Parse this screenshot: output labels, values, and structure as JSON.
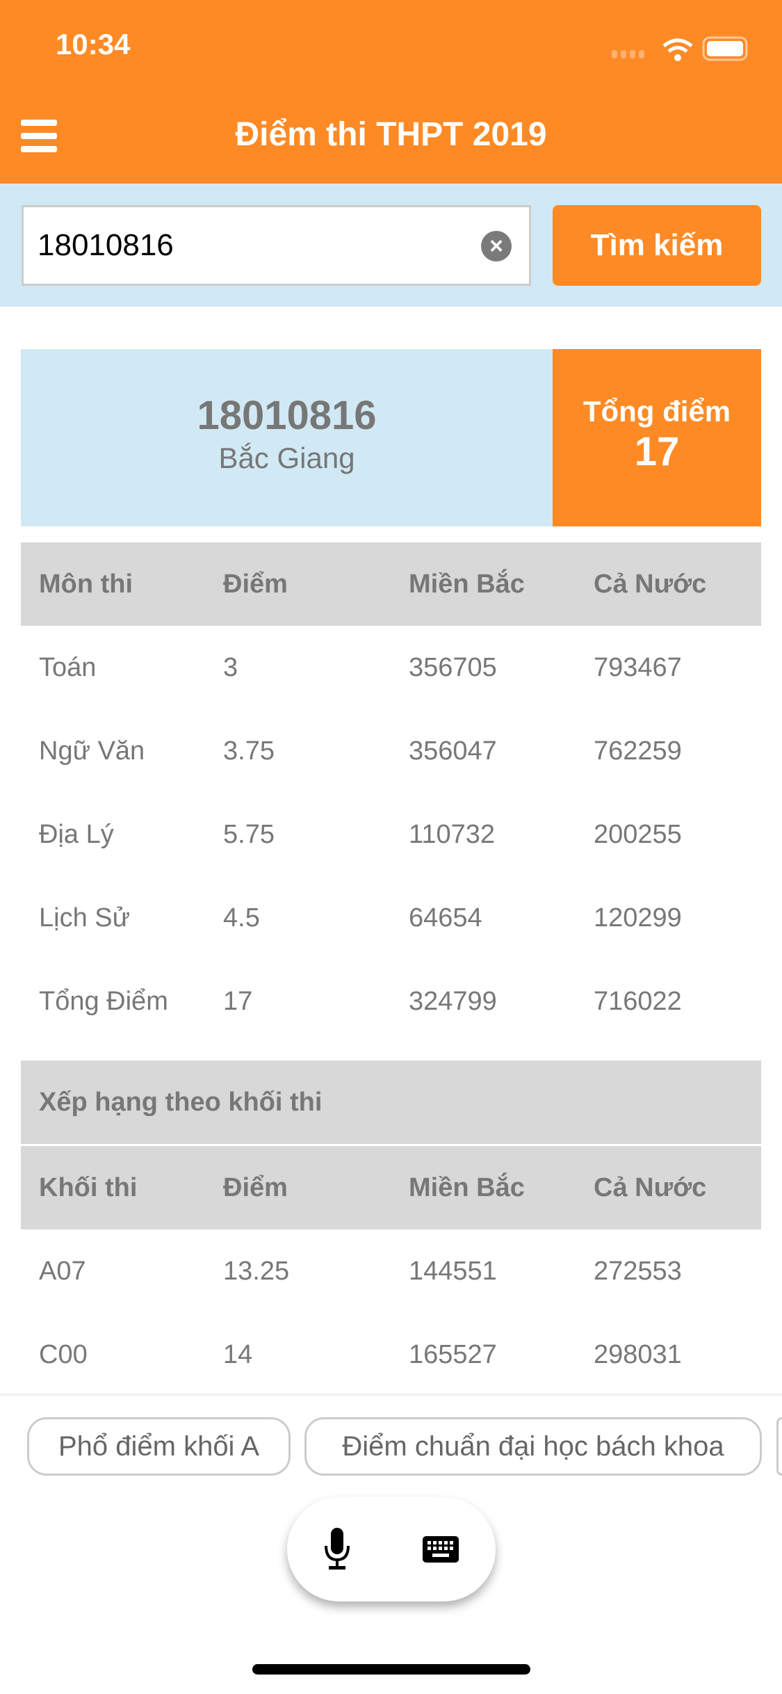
{
  "status": {
    "time": "10:34"
  },
  "header": {
    "title": "Điểm thi THPT 2019",
    "brand_color": "#fe8a25"
  },
  "search": {
    "value": "18010816",
    "button_label": "Tìm kiếm"
  },
  "summary": {
    "candidate_id": "18010816",
    "province": "Bắc Giang",
    "total_label": "Tổng điểm",
    "total_value": "17"
  },
  "subjects": {
    "headers": [
      "Môn thi",
      "Điểm",
      "Miền Bắc",
      "Cả Nước"
    ],
    "rows": [
      [
        "Toán",
        "3",
        "356705",
        "793467"
      ],
      [
        "Ngữ Văn",
        "3.75",
        "356047",
        "762259"
      ],
      [
        "Địa Lý",
        "5.75",
        "110732",
        "200255"
      ],
      [
        "Lịch Sử",
        "4.5",
        "64654",
        "120299"
      ],
      [
        "Tổng Điểm",
        "17",
        "324799",
        "716022"
      ]
    ]
  },
  "blocks": {
    "section_title": "Xếp hạng theo khối thi",
    "headers": [
      "Khối thi",
      "Điểm",
      "Miền Bắc",
      "Cả Nước"
    ],
    "rows": [
      [
        "A07",
        "13.25",
        "144551",
        "272553"
      ],
      [
        "C00",
        "14",
        "165527",
        "298031"
      ]
    ]
  },
  "suggestions": [
    "Phổ điểm khối A",
    "Điểm chuẩn đại học bách khoa",
    ""
  ]
}
